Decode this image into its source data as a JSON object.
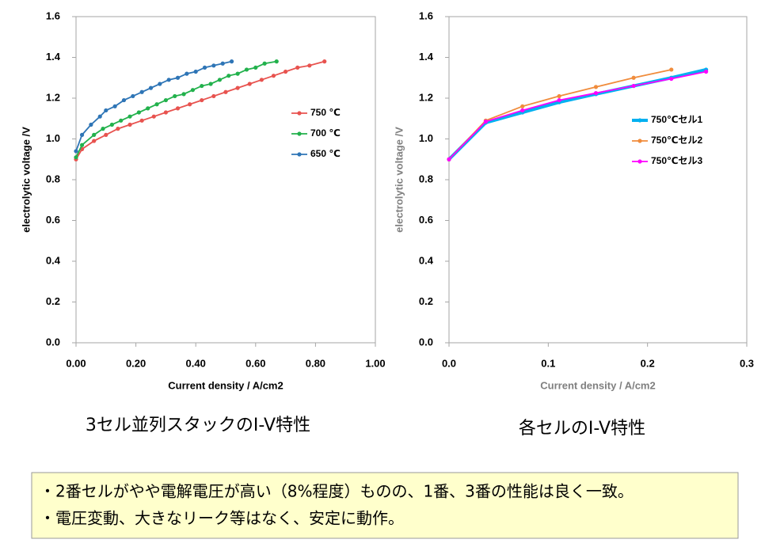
{
  "chart_data": [
    {
      "type": "line",
      "caption": "3セル並列スタックのI-V特性",
      "xlabel": "Current density / A/cm2",
      "ylabel": "electrolytic voltage  /V",
      "xlim": [
        0,
        1.0
      ],
      "xticks": [
        {
          "value": 0,
          "label": "0.00"
        },
        {
          "value": 0.2,
          "label": "0.20"
        },
        {
          "value": 0.4,
          "label": "0.40"
        },
        {
          "value": 0.6,
          "label": "0.60"
        },
        {
          "value": 0.8,
          "label": "0.80"
        },
        {
          "value": 1.0,
          "label": "1.00"
        }
      ],
      "ylim": [
        0,
        1.6
      ],
      "yticks": [
        {
          "value": 0,
          "label": "0.0"
        },
        {
          "value": 0.2,
          "label": "0.2"
        },
        {
          "value": 0.4,
          "label": "0.4"
        },
        {
          "value": 0.6,
          "label": "0.6"
        },
        {
          "value": 0.8,
          "label": "0.8"
        },
        {
          "value": 1.0,
          "label": "1.0"
        },
        {
          "value": 1.2,
          "label": "1.2"
        },
        {
          "value": 1.4,
          "label": "1.4"
        },
        {
          "value": 1.6,
          "label": "1.6"
        }
      ],
      "series": [
        {
          "name": "750 ℃",
          "color": "#e8534f",
          "x": [
            0,
            0.02,
            0.06,
            0.1,
            0.14,
            0.18,
            0.22,
            0.26,
            0.3,
            0.34,
            0.38,
            0.42,
            0.46,
            0.5,
            0.54,
            0.58,
            0.62,
            0.66,
            0.7,
            0.74,
            0.78,
            0.83
          ],
          "values": [
            0.9,
            0.95,
            0.99,
            1.02,
            1.05,
            1.07,
            1.09,
            1.11,
            1.13,
            1.15,
            1.17,
            1.19,
            1.21,
            1.23,
            1.25,
            1.27,
            1.29,
            1.31,
            1.33,
            1.35,
            1.36,
            1.38
          ]
        },
        {
          "name": "700 ℃",
          "color": "#22b14c",
          "x": [
            0,
            0.02,
            0.06,
            0.09,
            0.12,
            0.15,
            0.18,
            0.21,
            0.24,
            0.27,
            0.3,
            0.33,
            0.36,
            0.39,
            0.42,
            0.45,
            0.48,
            0.51,
            0.54,
            0.57,
            0.6,
            0.63,
            0.67
          ],
          "values": [
            0.91,
            0.97,
            1.02,
            1.05,
            1.07,
            1.09,
            1.11,
            1.13,
            1.15,
            1.17,
            1.19,
            1.21,
            1.22,
            1.24,
            1.26,
            1.27,
            1.29,
            1.31,
            1.32,
            1.34,
            1.35,
            1.37,
            1.38
          ]
        },
        {
          "name": "650 ℃",
          "color": "#2e75b6",
          "x": [
            0,
            0.02,
            0.05,
            0.08,
            0.1,
            0.13,
            0.16,
            0.19,
            0.22,
            0.25,
            0.28,
            0.31,
            0.34,
            0.37,
            0.4,
            0.43,
            0.46,
            0.49,
            0.52
          ],
          "values": [
            0.94,
            1.02,
            1.07,
            1.11,
            1.14,
            1.16,
            1.19,
            1.21,
            1.23,
            1.25,
            1.27,
            1.29,
            1.3,
            1.32,
            1.33,
            1.35,
            1.36,
            1.37,
            1.38
          ]
        }
      ]
    },
    {
      "type": "line",
      "caption": "各セルのI-V特性",
      "xlabel": "Current density / A/cm2",
      "ylabel": "electrolytic voltage  /V",
      "xlim": [
        0,
        0.3
      ],
      "xticks": [
        {
          "value": 0,
          "label": "0.0"
        },
        0.1,
        0.2,
        0.3
      ],
      "ylim": [
        0,
        1.6
      ],
      "yticks": [
        {
          "value": 0,
          "label": "0.0"
        },
        {
          "value": 0.2,
          "label": "0.2"
        },
        {
          "value": 0.4,
          "label": "0.4"
        },
        {
          "value": 0.6,
          "label": "0.6"
        },
        {
          "value": 0.8,
          "label": "0.8"
        },
        {
          "value": 1.0,
          "label": "1.0"
        },
        {
          "value": 1.2,
          "label": "1.2"
        },
        {
          "value": 1.4,
          "label": "1.4"
        },
        {
          "value": 1.6,
          "label": "1.6"
        }
      ],
      "series": [
        {
          "name": "750℃セル1",
          "color": "#00b0f0",
          "x": [
            0,
            0.037,
            0.074,
            0.111,
            0.148,
            0.186,
            0.224,
            0.259
          ],
          "values": [
            0.9,
            1.08,
            1.13,
            1.18,
            1.22,
            1.26,
            1.3,
            1.34
          ]
        },
        {
          "name": "750℃セル2",
          "color": "#f08c3c",
          "x": [
            0,
            0.037,
            0.074,
            0.111,
            0.148,
            0.186,
            0.224
          ],
          "values": [
            0.9,
            1.09,
            1.16,
            1.21,
            1.255,
            1.3,
            1.34
          ]
        },
        {
          "name": "750℃セル3",
          "color": "#ff00ff",
          "x": [
            0,
            0.037,
            0.074,
            0.111,
            0.148,
            0.186,
            0.224,
            0.259
          ],
          "values": [
            0.9,
            1.085,
            1.14,
            1.19,
            1.225,
            1.26,
            1.295,
            1.33
          ]
        }
      ]
    }
  ],
  "notes": [
    "・2番セルがやや電解電圧が高い（8%程度）ものの、1番、3番の性能は良く一致。",
    "・電圧変動、大きなリーク等はなく、安定に動作。"
  ]
}
